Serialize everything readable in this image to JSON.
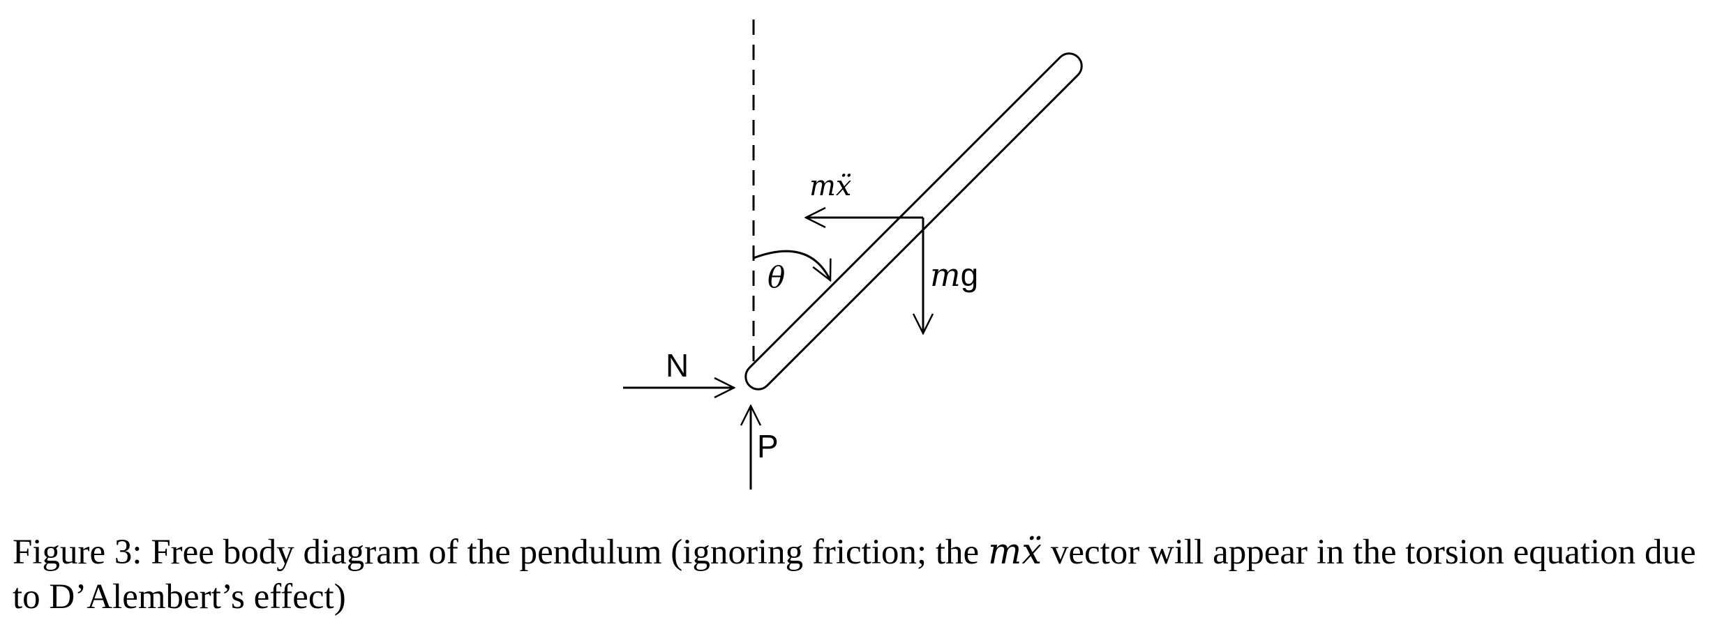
{
  "figure": {
    "labels": {
      "inertial_force": "mẍ",
      "angle": "θ",
      "gravity_m": "m",
      "gravity_g": "g",
      "normal_force": "N",
      "pivot_force": "P"
    }
  },
  "caption": {
    "lead": "Figure 3: Free body diagram of the pendulum (ignoring friction; the ",
    "math": "mẍ",
    "tail": " vector will appear in the torsion equation due to D’Alembert’s effect)"
  }
}
